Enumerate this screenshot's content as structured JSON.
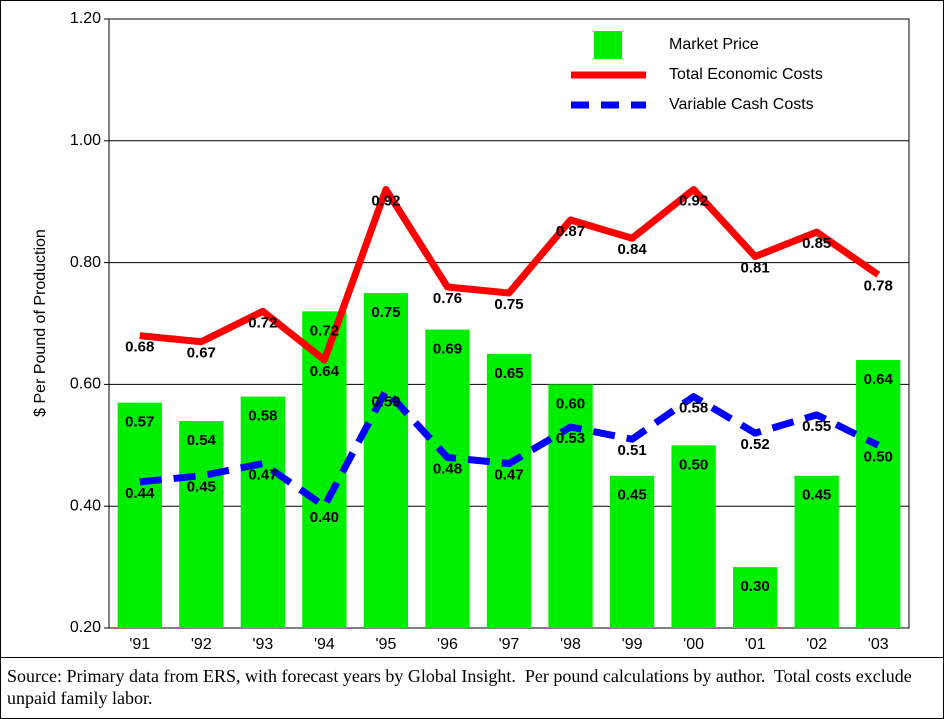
{
  "chart_data": {
    "type": "bar_line",
    "y_label": "$ Per Pound of Production",
    "source": "Source: Primary data from ERS, with forecast years by Global Insight.  Per pound calculations by author.  Total costs exclude unpaid family labor.",
    "categories": [
      "'91",
      "'92",
      "'93",
      "'94",
      "'95",
      "'96",
      "'97",
      "'98",
      "'99",
      "'00",
      "'01",
      "'02",
      "'03"
    ],
    "ylim": [
      0.2,
      1.2
    ],
    "yticks": [
      {
        "value": 0.2,
        "label": "0.20"
      },
      {
        "value": 0.4,
        "label": "0.40"
      },
      {
        "value": 0.6,
        "label": "0.60"
      },
      {
        "value": 0.8,
        "label": "0.80"
      },
      {
        "value": 1.0,
        "label": "1.00"
      },
      {
        "value": 1.2,
        "label": "1.20"
      }
    ],
    "grid": true,
    "series": [
      {
        "name": "Market Price",
        "type": "bar",
        "color": "#00ee00",
        "values": [
          0.57,
          0.54,
          0.58,
          0.72,
          0.75,
          0.69,
          0.65,
          0.6,
          0.45,
          0.5,
          0.3,
          0.45,
          0.64
        ],
        "value_labels": [
          "0.57",
          "0.54",
          "0.58",
          "0.72",
          "0.75",
          "0.69",
          "0.65",
          "0.60",
          "0.45",
          "0.50",
          "0.30",
          "0.45",
          "0.64"
        ]
      },
      {
        "name": "Total Economic Costs",
        "type": "line",
        "color": "#ff0000",
        "values": [
          0.68,
          0.67,
          0.72,
          0.64,
          0.92,
          0.76,
          0.75,
          0.87,
          0.84,
          0.92,
          0.81,
          0.85,
          0.78
        ],
        "value_labels": [
          "0.68",
          "0.67",
          "0.72",
          "0.64",
          "0.92",
          "0.76",
          "0.75",
          "0.87",
          "0.84",
          "0.92",
          "0.81",
          "0.85",
          "0.78"
        ]
      },
      {
        "name": "Variable Cash Costs",
        "type": "dashed-line",
        "color": "#0000ff",
        "values": [
          0.44,
          0.45,
          0.47,
          0.4,
          0.59,
          0.48,
          0.47,
          0.53,
          0.51,
          0.58,
          0.52,
          0.55,
          0.5
        ],
        "value_labels": [
          "0.44",
          "0.45",
          "0.47",
          "0.40",
          "0.59",
          "0.48",
          "0.47",
          "0.53",
          "0.51",
          "0.58",
          "0.52",
          "0.55",
          "0.50"
        ]
      }
    ]
  }
}
